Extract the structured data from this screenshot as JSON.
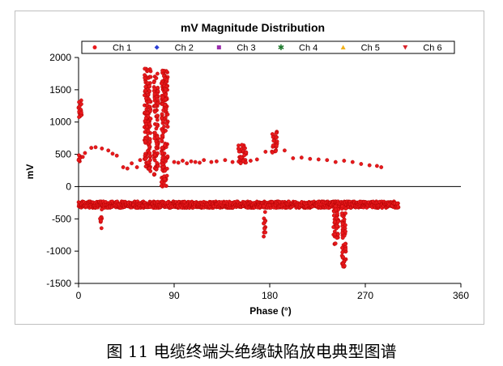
{
  "chart_data": {
    "type": "scatter",
    "title": "mV Magnitude Distribution",
    "xlabel": "Phase (°)",
    "ylabel": "mV",
    "xlim": [
      0,
      360
    ],
    "ylim": [
      -1500,
      2000
    ],
    "xticks": [
      0,
      90,
      180,
      270,
      360
    ],
    "yticks": [
      -1500,
      -1000,
      -500,
      0,
      500,
      1000,
      1500,
      2000
    ],
    "grid": false,
    "legend_position": "top",
    "legend": [
      {
        "name": "Ch 1",
        "color": "#e8191c",
        "marker": "circle"
      },
      {
        "name": "Ch 2",
        "color": "#2b3fd6",
        "marker": "diamond"
      },
      {
        "name": "Ch 3",
        "color": "#9b2fae",
        "marker": "square"
      },
      {
        "name": "Ch 4",
        "color": "#1f7a2e",
        "marker": "star"
      },
      {
        "name": "Ch 5",
        "color": "#f2b21c",
        "marker": "triangle-up"
      },
      {
        "name": "Ch 6",
        "color": "#d8232a",
        "marker": "triangle-down"
      }
    ],
    "series": [
      {
        "name": "Ch 1",
        "color": "#e8191c",
        "clusters": [
          {
            "x": [
              0,
              300
            ],
            "y": [
              -330,
              -230
            ],
            "step": 1.2,
            "rows": 5
          },
          {
            "x": [
              0,
              3
            ],
            "y": [
              1000,
              1400
            ]
          },
          {
            "x": [
              0,
              2
            ],
            "y": [
              380,
              500
            ]
          },
          {
            "x": [
              62,
              68
            ],
            "y": [
              200,
              1850
            ]
          },
          {
            "x": [
              71,
              75
            ],
            "y": [
              150,
              1800
            ]
          },
          {
            "x": [
              78,
              84
            ],
            "y": [
              0,
              1800
            ]
          },
          {
            "x": [
              182,
              187
            ],
            "y": [
              520,
              860
            ]
          },
          {
            "x": [
              150,
              158
            ],
            "y": [
              360,
              650
            ]
          },
          {
            "x": [
              20,
              22
            ],
            "y": [
              -650,
              -300
            ]
          },
          {
            "x": [
              174,
              176
            ],
            "y": [
              -820,
              -300
            ]
          },
          {
            "x": [
              240,
              245
            ],
            "y": [
              -900,
              -300
            ]
          },
          {
            "x": [
              248,
              252
            ],
            "y": [
              -1250,
              -300
            ]
          }
        ],
        "points": [
          [
            12,
            600
          ],
          [
            16,
            610
          ],
          [
            22,
            590
          ],
          [
            28,
            560
          ],
          [
            32,
            510
          ],
          [
            36,
            480
          ],
          [
            42,
            300
          ],
          [
            46,
            280
          ],
          [
            50,
            360
          ],
          [
            55,
            300
          ],
          [
            58,
            410
          ],
          [
            90,
            380
          ],
          [
            94,
            370
          ],
          [
            98,
            400
          ],
          [
            102,
            360
          ],
          [
            106,
            390
          ],
          [
            110,
            380
          ],
          [
            114,
            370
          ],
          [
            118,
            410
          ],
          [
            125,
            380
          ],
          [
            130,
            390
          ],
          [
            138,
            410
          ],
          [
            145,
            380
          ],
          [
            162,
            400
          ],
          [
            168,
            420
          ],
          [
            176,
            540
          ],
          [
            194,
            560
          ],
          [
            202,
            440
          ],
          [
            210,
            450
          ],
          [
            218,
            430
          ],
          [
            226,
            420
          ],
          [
            234,
            410
          ],
          [
            242,
            380
          ],
          [
            250,
            400
          ],
          [
            258,
            380
          ],
          [
            266,
            350
          ],
          [
            274,
            330
          ],
          [
            281,
            320
          ],
          [
            285,
            300
          ],
          [
            0,
            410
          ],
          [
            4,
            460
          ],
          [
            6,
            520
          ]
        ]
      }
    ]
  },
  "caption": "图 11  电缆终端头绝缘缺陷放电典型图谱"
}
